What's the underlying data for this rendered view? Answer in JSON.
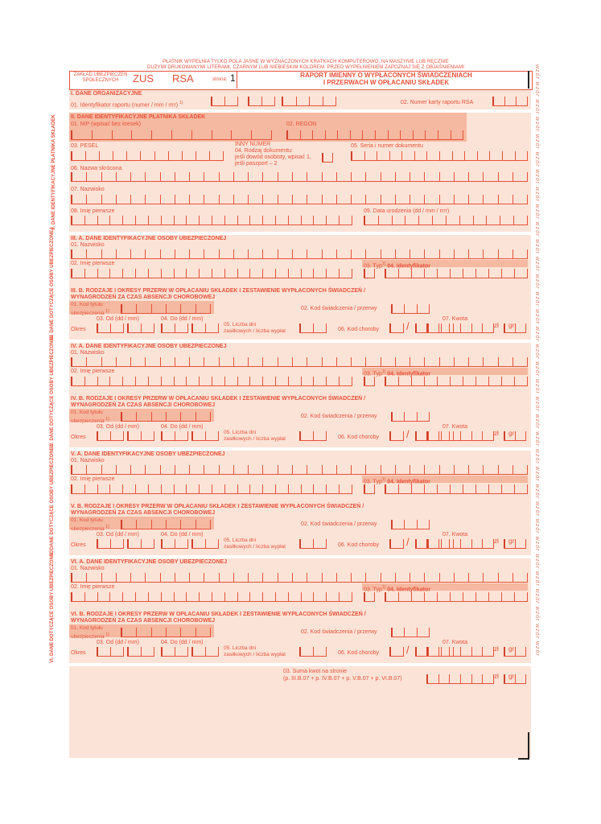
{
  "top_note_1": "PŁATNIK WYPEŁNIA TYLKO POLA JASNE W WYZNACZONYCH KRATKACH KOMPUTEROWO, NA MASZYNIE LUB RĘCZNIE",
  "top_note_2": "DUŻYMI DRUKOWANYMI LITERAMI, CZARNYM LUB NIEBIESKIM KOLOREM. PRZED WYPEŁNIENIEM ZAPOZNAJ SIĘ Z OBJAŚNIENIAMI",
  "header": {
    "institution": "ZAKŁAD UBEZPIECZEŃ SPOŁECZNYCH",
    "zus": "ZUS",
    "form": "RSA",
    "page_label": "strona:",
    "page_num": "1",
    "title_1": "RAPORT IMIENNY O WYPŁACONYCH ŚWIADCZENIACH",
    "title_2": "I PRZERWACH W OPŁACANIU SKŁADEK"
  },
  "s1": {
    "title": "I. DANE ORGANIZACYJNE",
    "f01": "01. Identyfikator raportu (numer / mm / rrrr)",
    "f01_sup": "1)",
    "f02": "02. Numer karty raportu RSA"
  },
  "s2": {
    "title": "II. DANE IDENTYFIKACYJNE PŁATNIKA SKŁADEK",
    "side": "II. DANE IDENTYFIKACYJNE PŁATNIKA SKŁADEK",
    "nip": "01. NIP (wpisać bez kresek)",
    "regon": "02. REGON",
    "pesel": "03. PESEL",
    "inny": "INNY NUMER",
    "rodzaj": "04. Rodzaj dokumentu:",
    "rodzaj_2": "jeśli dowód osobisty, wpisać 1,",
    "rodzaj_3": "jeśli paszport – 2",
    "seria": "05. Seria i numer dokumentu",
    "nazwa": "06. Nazwa skrócona",
    "nazwisko": "07. Nazwisko",
    "imie": "08. Imię pierwsze",
    "data": "09. Data urodzenia (dd / mm / rrrr)"
  },
  "persons": [
    {
      "num": "III",
      "side": "III. DANE DOTYCZĄCE OSOBY UBEZPIECZONEJ"
    },
    {
      "num": "IV",
      "side": "IV. DANE DOTYCZĄCE OSOBY UBEZPIECZONEJ"
    },
    {
      "num": "V",
      "side": "V. DANE DOTYCZĄCE OSOBY UBEZPIECZONEJ"
    },
    {
      "num": "VI",
      "side": "VI. DANE DOTYCZĄCE OSOBY UBEZPIECZONEJ"
    }
  ],
  "person_labels": {
    "a_title": ". A. DANE IDENTYFIKACYJNE OSOBY UBEZPIECZONEJ",
    "nazwisko": "01. Nazwisko",
    "imie": "02. Imię pierwsze",
    "typ": "03. Typ",
    "typ_sup": "1)",
    "identyfikator": "04. Identyfikator",
    "b_title_1": ". B. RODZAJE I OKRESY PRZERW W OPŁACANIU SKŁADEK I ZESTAWIENIE WYPŁACONYCH ŚWIADCZEŃ /",
    "b_title_2": "WYNAGRODZEŃ ZA CZAS ABSENCJI CHOROBOWEJ",
    "kod_tytulu": "01. Kod tytułu",
    "ubezpieczenia": "ubezpieczenia",
    "kod_sup": "1)",
    "kod_swiad": "02. Kod świadczenia / przerwy",
    "od": "03. Od (dd / mm)",
    "do": "04. Do (dd / mm)",
    "kwota": "07. Kwota",
    "okres": "Okres",
    "liczba_1": "05. Liczba dni",
    "liczba_2": "zasiłkowych / liczba wypłat",
    "kod_choroby": "06. Kod choroby",
    "zl": "zł",
    "gr": "gr"
  },
  "suma_1": "03. Suma kwot na stronie",
  "suma_2": "(p. III.B.07 + p. IV.B.07 + p. V.B.07 + p. VI.B.07)",
  "watermark": "wzór wzór wzór wzór wzór wzór wzór wzór wzór wzór wzór wzór wzór wzór wzór wzór wzór wzór wzór wzór wzór wzór wzór wzór wzór wzór wzór wzór wzór wzór wzór wzór wzór wzór"
}
